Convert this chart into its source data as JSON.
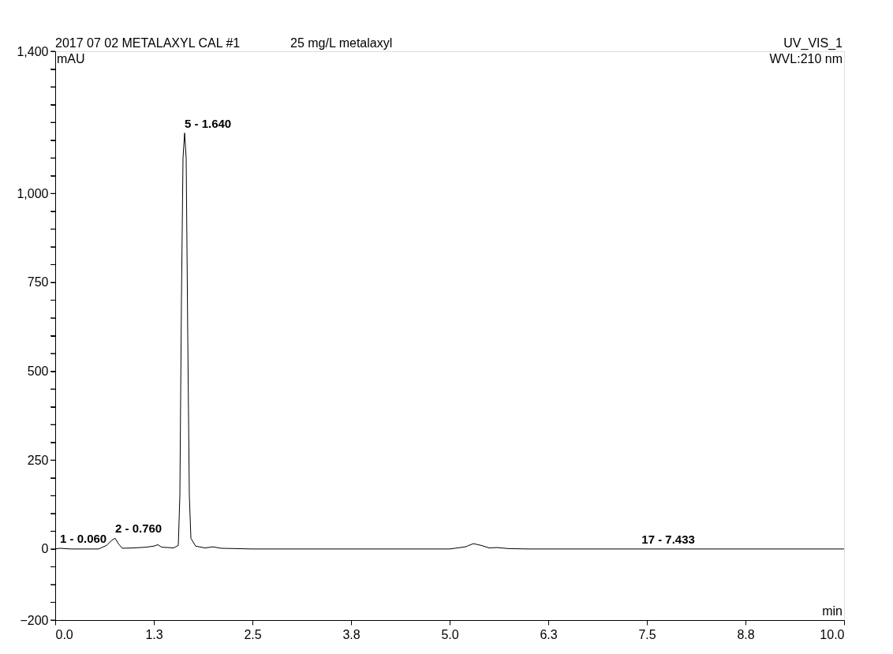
{
  "chart_data": {
    "type": "line",
    "title": "2017 07 02 METALAXYL CAL #1",
    "subtitle": "25 mg/L metalaxyl",
    "xlabel": "min",
    "ylabel": "mAU",
    "x": [
      0,
      0.06,
      0.2,
      0.55,
      0.65,
      0.72,
      0.76,
      0.8,
      0.85,
      1.0,
      1.15,
      1.25,
      1.3,
      1.35,
      1.5,
      1.56,
      1.58,
      1.6,
      1.62,
      1.64,
      1.66,
      1.68,
      1.7,
      1.72,
      1.78,
      1.9,
      2.0,
      2.1,
      2.5,
      3.0,
      4.0,
      5.0,
      5.2,
      5.3,
      5.4,
      5.5,
      5.6,
      5.75,
      6.0,
      10
    ],
    "series": [
      {
        "color": "#000000",
        "values": [
          0,
          2,
          0,
          0,
          10,
          25,
          30,
          15,
          2,
          3,
          5,
          8,
          12,
          5,
          3,
          10,
          150,
          700,
          1100,
          1170,
          1100,
          600,
          150,
          30,
          8,
          3,
          6,
          2,
          0,
          0,
          0,
          0,
          6,
          15,
          10,
          3,
          4,
          1,
          0,
          0
        ]
      }
    ],
    "xlim": [
      0,
      10
    ],
    "ylim": [
      -200,
      1400
    ],
    "xticks": [
      {
        "value": 0,
        "label": "0.0"
      },
      {
        "value": 1.25,
        "label": "1.3"
      },
      {
        "value": 2.5,
        "label": "2.5"
      },
      {
        "value": 3.75,
        "label": "3.8"
      },
      {
        "value": 5,
        "label": "5.0"
      },
      {
        "value": 6.25,
        "label": "6.3"
      },
      {
        "value": 7.5,
        "label": "7.5"
      },
      {
        "value": 8.75,
        "label": "8.8"
      },
      {
        "value": 10,
        "label": "10.0"
      }
    ],
    "yticks": [
      -200,
      {
        "value": -150,
        "label": null
      },
      {
        "value": -100,
        "label": null
      },
      {
        "value": -50,
        "label": null
      },
      0,
      {
        "value": 50,
        "label": null
      },
      {
        "value": 100,
        "label": null
      },
      {
        "value": 150,
        "label": null
      },
      {
        "value": 200,
        "label": null
      },
      250,
      {
        "value": 300,
        "label": null
      },
      {
        "value": 350,
        "label": null
      },
      {
        "value": 400,
        "label": null
      },
      {
        "value": 450,
        "label": null
      },
      500,
      {
        "value": 550,
        "label": null
      },
      {
        "value": 600,
        "label": null
      },
      {
        "value": 650,
        "label": null
      },
      {
        "value": 700,
        "label": null
      },
      750,
      {
        "value": 800,
        "label": null
      },
      {
        "value": 850,
        "label": null
      },
      {
        "value": 900,
        "label": null
      },
      {
        "value": 950,
        "label": null
      },
      {
        "value": 1000,
        "label": "1,000"
      },
      {
        "value": 1050,
        "label": null
      },
      {
        "value": 1100,
        "label": null
      },
      {
        "value": 1150,
        "label": null
      },
      {
        "value": 1200,
        "label": null
      },
      {
        "value": 1250,
        "label": null
      },
      {
        "value": 1300,
        "label": null
      },
      {
        "value": 1350,
        "label": null
      },
      {
        "value": 1400,
        "label": "1,400"
      }
    ],
    "grid": false,
    "marker": "none",
    "line_style": "solid",
    "annotations": [
      "UV_VIS_1",
      "WVL:210 nm",
      {
        "text": "1 - 0.060",
        "x": 0.06,
        "y": 2
      },
      {
        "text": "2 - 0.760",
        "x": 0.76,
        "y": 30
      },
      {
        "text": "5 - 1.640",
        "x": 1.64,
        "y": 1170
      },
      {
        "text": "17 - 7.433",
        "x": 7.433,
        "y": 0
      }
    ]
  }
}
